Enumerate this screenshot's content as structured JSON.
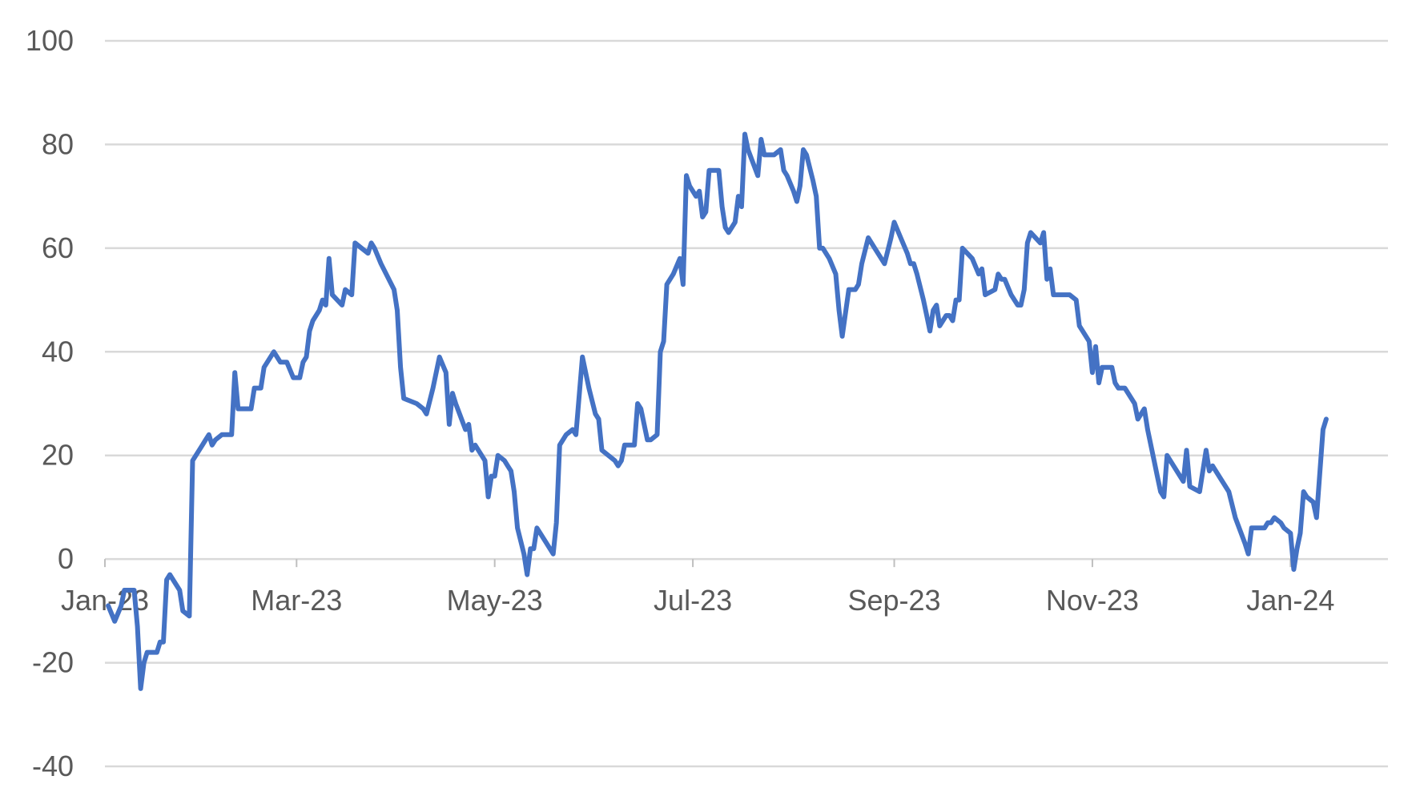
{
  "chart_data": {
    "type": "line",
    "title": "",
    "xlabel": "",
    "ylabel": "",
    "ylim": [
      -40,
      100
    ],
    "y_ticks": [
      100,
      80,
      60,
      40,
      20,
      0,
      -20,
      -40
    ],
    "y_tick_labels": [
      "100",
      "80",
      "60",
      "40",
      "20",
      "0",
      "-20",
      "-40"
    ],
    "x_range": [
      "2023-01-01",
      "2024-01-31"
    ],
    "x_ticks": [
      {
        "date": "2023-01-01",
        "label": "Jan-23"
      },
      {
        "date": "2023-03-01",
        "label": "Mar-23"
      },
      {
        "date": "2023-05-01",
        "label": "May-23"
      },
      {
        "date": "2023-07-01",
        "label": "Jul-23"
      },
      {
        "date": "2023-09-01",
        "label": "Sep-23"
      },
      {
        "date": "2023-11-01",
        "label": "Nov-23"
      },
      {
        "date": "2024-01-01",
        "label": "Jan-24"
      }
    ],
    "grid": true,
    "legend": "none",
    "series_color": "#4472c4",
    "series": [
      {
        "name": "",
        "points": [
          [
            "2023-01-02",
            -9
          ],
          [
            "2023-01-04",
            -12
          ],
          [
            "2023-01-06",
            -9
          ],
          [
            "2023-01-07",
            -6
          ],
          [
            "2023-01-10",
            -6
          ],
          [
            "2023-01-11",
            -13
          ],
          [
            "2023-01-12",
            -25
          ],
          [
            "2023-01-13",
            -20
          ],
          [
            "2023-01-14",
            -18
          ],
          [
            "2023-01-17",
            -18
          ],
          [
            "2023-01-18",
            -16
          ],
          [
            "2023-01-19",
            -16
          ],
          [
            "2023-01-20",
            -4
          ],
          [
            "2023-01-21",
            -3
          ],
          [
            "2023-01-23",
            -5
          ],
          [
            "2023-01-24",
            -6
          ],
          [
            "2023-01-25",
            -10
          ],
          [
            "2023-01-27",
            -11
          ],
          [
            "2023-01-28",
            19
          ],
          [
            "2023-01-31",
            22
          ],
          [
            "2023-02-01",
            23
          ],
          [
            "2023-02-02",
            24
          ],
          [
            "2023-02-03",
            22
          ],
          [
            "2023-02-04",
            23
          ],
          [
            "2023-02-06",
            24
          ],
          [
            "2023-02-09",
            24
          ],
          [
            "2023-02-10",
            36
          ],
          [
            "2023-02-11",
            29
          ],
          [
            "2023-02-13",
            29
          ],
          [
            "2023-02-15",
            29
          ],
          [
            "2023-02-16",
            33
          ],
          [
            "2023-02-18",
            33
          ],
          [
            "2023-02-19",
            37
          ],
          [
            "2023-02-22",
            40
          ],
          [
            "2023-02-24",
            38
          ],
          [
            "2023-02-26",
            38
          ],
          [
            "2023-02-28",
            35
          ],
          [
            "2023-03-02",
            35
          ],
          [
            "2023-03-03",
            38
          ],
          [
            "2023-03-04",
            39
          ],
          [
            "2023-03-05",
            44
          ],
          [
            "2023-03-06",
            46
          ],
          [
            "2023-03-08",
            48
          ],
          [
            "2023-03-09",
            50
          ],
          [
            "2023-03-10",
            49
          ],
          [
            "2023-03-11",
            58
          ],
          [
            "2023-03-12",
            51
          ],
          [
            "2023-03-15",
            49
          ],
          [
            "2023-03-16",
            52
          ],
          [
            "2023-03-18",
            51
          ],
          [
            "2023-03-19",
            61
          ],
          [
            "2023-03-21",
            60
          ],
          [
            "2023-03-23",
            59
          ],
          [
            "2023-03-24",
            61
          ],
          [
            "2023-03-25",
            60
          ],
          [
            "2023-03-27",
            57
          ],
          [
            "2023-03-31",
            52
          ],
          [
            "2023-04-01",
            48
          ],
          [
            "2023-04-02",
            37
          ],
          [
            "2023-04-03",
            31
          ],
          [
            "2023-04-07",
            30
          ],
          [
            "2023-04-09",
            29
          ],
          [
            "2023-04-10",
            28
          ],
          [
            "2023-04-12",
            33
          ],
          [
            "2023-04-14",
            39
          ],
          [
            "2023-04-16",
            36
          ],
          [
            "2023-04-17",
            26
          ],
          [
            "2023-04-18",
            32
          ],
          [
            "2023-04-19",
            30
          ],
          [
            "2023-04-22",
            25
          ],
          [
            "2023-04-23",
            26
          ],
          [
            "2023-04-24",
            21
          ],
          [
            "2023-04-25",
            22
          ],
          [
            "2023-04-28",
            19
          ],
          [
            "2023-04-29",
            12
          ],
          [
            "2023-04-30",
            16
          ],
          [
            "2023-05-01",
            16
          ],
          [
            "2023-05-02",
            20
          ],
          [
            "2023-05-04",
            19
          ],
          [
            "2023-05-05",
            18
          ],
          [
            "2023-05-06",
            17
          ],
          [
            "2023-05-07",
            13
          ],
          [
            "2023-05-08",
            6
          ],
          [
            "2023-05-10",
            1
          ],
          [
            "2023-05-11",
            -3
          ],
          [
            "2023-05-12",
            2
          ],
          [
            "2023-05-13",
            2
          ],
          [
            "2023-05-14",
            6
          ],
          [
            "2023-05-15",
            5
          ],
          [
            "2023-05-17",
            3
          ],
          [
            "2023-05-19",
            1
          ],
          [
            "2023-05-20",
            7
          ],
          [
            "2023-05-21",
            22
          ],
          [
            "2023-05-23",
            24
          ],
          [
            "2023-05-25",
            25
          ],
          [
            "2023-05-26",
            24
          ],
          [
            "2023-05-28",
            39
          ],
          [
            "2023-05-30",
            33
          ],
          [
            "2023-06-01",
            28
          ],
          [
            "2023-06-02",
            27
          ],
          [
            "2023-06-03",
            21
          ],
          [
            "2023-06-07",
            19
          ],
          [
            "2023-06-08",
            18
          ],
          [
            "2023-06-09",
            19
          ],
          [
            "2023-06-10",
            22
          ],
          [
            "2023-06-11",
            22
          ],
          [
            "2023-06-13",
            22
          ],
          [
            "2023-06-14",
            30
          ],
          [
            "2023-06-15",
            29
          ],
          [
            "2023-06-17",
            23
          ],
          [
            "2023-06-18",
            23
          ],
          [
            "2023-06-20",
            24
          ],
          [
            "2023-06-21",
            40
          ],
          [
            "2023-06-22",
            42
          ],
          [
            "2023-06-23",
            53
          ],
          [
            "2023-06-25",
            55
          ],
          [
            "2023-06-27",
            58
          ],
          [
            "2023-06-28",
            53
          ],
          [
            "2023-06-29",
            74
          ],
          [
            "2023-06-30",
            72
          ],
          [
            "2023-07-02",
            70
          ],
          [
            "2023-07-03",
            71
          ],
          [
            "2023-07-04",
            66
          ],
          [
            "2023-07-05",
            67
          ],
          [
            "2023-07-06",
            75
          ],
          [
            "2023-07-09",
            75
          ],
          [
            "2023-07-10",
            68
          ],
          [
            "2023-07-11",
            64
          ],
          [
            "2023-07-12",
            63
          ],
          [
            "2023-07-14",
            65
          ],
          [
            "2023-07-15",
            70
          ],
          [
            "2023-07-16",
            68
          ],
          [
            "2023-07-17",
            82
          ],
          [
            "2023-07-18",
            79
          ],
          [
            "2023-07-21",
            74
          ],
          [
            "2023-07-22",
            81
          ],
          [
            "2023-07-23",
            78
          ],
          [
            "2023-07-25",
            78
          ],
          [
            "2023-07-26",
            78
          ],
          [
            "2023-07-28",
            79
          ],
          [
            "2023-07-29",
            75
          ],
          [
            "2023-07-30",
            74
          ],
          [
            "2023-08-01",
            71
          ],
          [
            "2023-08-02",
            69
          ],
          [
            "2023-08-03",
            72
          ],
          [
            "2023-08-04",
            79
          ],
          [
            "2023-08-05",
            78
          ],
          [
            "2023-08-07",
            73
          ],
          [
            "2023-08-08",
            70
          ],
          [
            "2023-08-09",
            60
          ],
          [
            "2023-08-10",
            60
          ],
          [
            "2023-08-12",
            58
          ],
          [
            "2023-08-14",
            55
          ],
          [
            "2023-08-15",
            48
          ],
          [
            "2023-08-16",
            43
          ],
          [
            "2023-08-18",
            52
          ],
          [
            "2023-08-20",
            52
          ],
          [
            "2023-08-21",
            53
          ],
          [
            "2023-08-22",
            57
          ],
          [
            "2023-08-24",
            62
          ],
          [
            "2023-08-26",
            60
          ],
          [
            "2023-08-29",
            57
          ],
          [
            "2023-08-31",
            62
          ],
          [
            "2023-09-01",
            65
          ],
          [
            "2023-09-03",
            62
          ],
          [
            "2023-09-05",
            59
          ],
          [
            "2023-09-06",
            57
          ],
          [
            "2023-09-07",
            57
          ],
          [
            "2023-09-08",
            55
          ],
          [
            "2023-09-10",
            50
          ],
          [
            "2023-09-11",
            47
          ],
          [
            "2023-09-12",
            44
          ],
          [
            "2023-09-13",
            48
          ],
          [
            "2023-09-14",
            49
          ],
          [
            "2023-09-15",
            45
          ],
          [
            "2023-09-17",
            47
          ],
          [
            "2023-09-18",
            47
          ],
          [
            "2023-09-19",
            46
          ],
          [
            "2023-09-20",
            50
          ],
          [
            "2023-09-21",
            50
          ],
          [
            "2023-09-22",
            60
          ],
          [
            "2023-09-25",
            58
          ],
          [
            "2023-09-27",
            55
          ],
          [
            "2023-09-28",
            56
          ],
          [
            "2023-09-29",
            51
          ],
          [
            "2023-10-02",
            52
          ],
          [
            "2023-10-03",
            55
          ],
          [
            "2023-10-04",
            54
          ],
          [
            "2023-10-05",
            54
          ],
          [
            "2023-10-07",
            51
          ],
          [
            "2023-10-09",
            49
          ],
          [
            "2023-10-10",
            49
          ],
          [
            "2023-10-11",
            52
          ],
          [
            "2023-10-12",
            61
          ],
          [
            "2023-10-13",
            63
          ],
          [
            "2023-10-16",
            61
          ],
          [
            "2023-10-17",
            63
          ],
          [
            "2023-10-18",
            54
          ],
          [
            "2023-10-19",
            56
          ],
          [
            "2023-10-20",
            51
          ],
          [
            "2023-10-23",
            51
          ],
          [
            "2023-10-25",
            51
          ],
          [
            "2023-10-27",
            50
          ],
          [
            "2023-10-28",
            45
          ],
          [
            "2023-10-31",
            42
          ],
          [
            "2023-11-01",
            36
          ],
          [
            "2023-11-02",
            41
          ],
          [
            "2023-11-03",
            34
          ],
          [
            "2023-11-04",
            37
          ],
          [
            "2023-11-07",
            37
          ],
          [
            "2023-11-08",
            34
          ],
          [
            "2023-11-09",
            33
          ],
          [
            "2023-11-11",
            33
          ],
          [
            "2023-11-14",
            30
          ],
          [
            "2023-11-15",
            27
          ],
          [
            "2023-11-17",
            29
          ],
          [
            "2023-11-18",
            25
          ],
          [
            "2023-11-20",
            19
          ],
          [
            "2023-11-21",
            16
          ],
          [
            "2023-11-22",
            13
          ],
          [
            "2023-11-23",
            12
          ],
          [
            "2023-11-24",
            20
          ],
          [
            "2023-11-26",
            18
          ],
          [
            "2023-11-29",
            15
          ],
          [
            "2023-11-30",
            21
          ],
          [
            "2023-12-01",
            14
          ],
          [
            "2023-12-04",
            13
          ],
          [
            "2023-12-06",
            21
          ],
          [
            "2023-12-07",
            17
          ],
          [
            "2023-12-08",
            18
          ],
          [
            "2023-12-10",
            16
          ],
          [
            "2023-12-13",
            13
          ],
          [
            "2023-12-15",
            8
          ],
          [
            "2023-12-18",
            3
          ],
          [
            "2023-12-19",
            1
          ],
          [
            "2023-12-20",
            6
          ],
          [
            "2023-12-22",
            6
          ],
          [
            "2023-12-24",
            6
          ],
          [
            "2023-12-25",
            7
          ],
          [
            "2023-12-26",
            7
          ],
          [
            "2023-12-27",
            8
          ],
          [
            "2023-12-29",
            7
          ],
          [
            "2023-12-30",
            6
          ],
          [
            "2024-01-01",
            5
          ],
          [
            "2024-01-02",
            -2
          ],
          [
            "2024-01-03",
            2
          ],
          [
            "2024-01-04",
            5
          ],
          [
            "2024-01-05",
            13
          ],
          [
            "2024-01-06",
            12
          ],
          [
            "2024-01-08",
            11
          ],
          [
            "2024-01-09",
            8
          ],
          [
            "2024-01-11",
            25
          ],
          [
            "2024-01-12",
            27
          ]
        ]
      }
    ]
  }
}
